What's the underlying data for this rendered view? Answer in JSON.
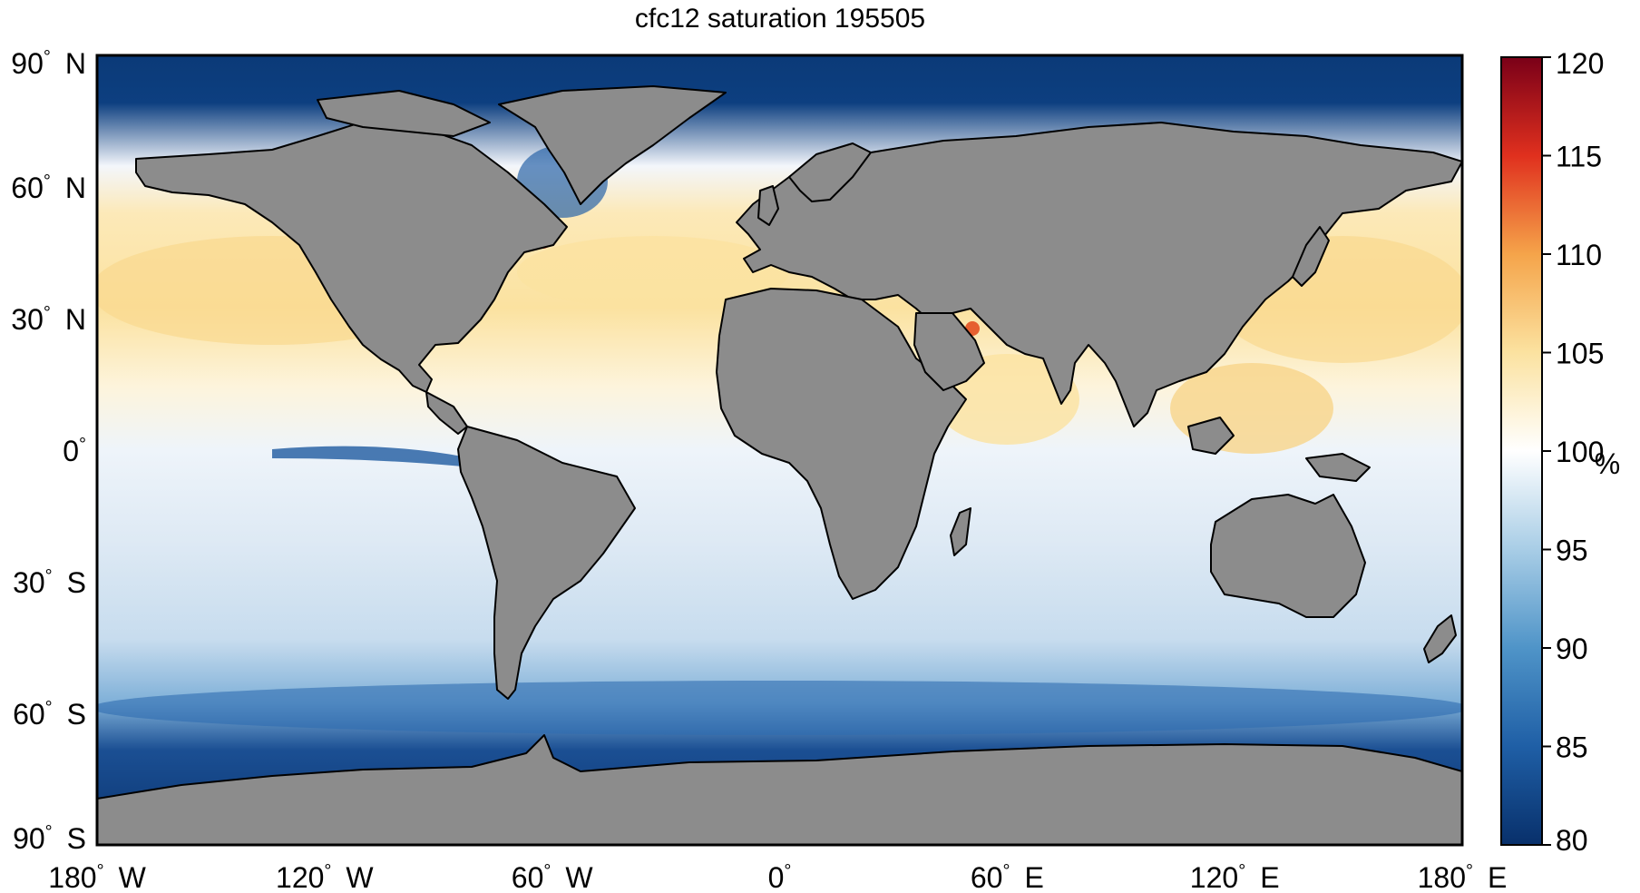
{
  "title": "cfc12 saturation 195505",
  "map": {
    "projection": "equirectangular",
    "lon_range": [
      -180,
      180
    ],
    "lat_range": [
      -90,
      90
    ],
    "land_color": "#8c8c8c",
    "coastline_color": "#000000"
  },
  "y_ticks": [
    {
      "lat": 90,
      "deg": "90",
      "hemi": "N"
    },
    {
      "lat": 60,
      "deg": "60",
      "hemi": "N"
    },
    {
      "lat": 30,
      "deg": "30",
      "hemi": "N"
    },
    {
      "lat": 0,
      "deg": "0",
      "hemi": ""
    },
    {
      "lat": -30,
      "deg": "30",
      "hemi": "S"
    },
    {
      "lat": -60,
      "deg": "60",
      "hemi": "S"
    },
    {
      "lat": -90,
      "deg": "90",
      "hemi": "S"
    }
  ],
  "x_ticks": [
    {
      "lon": -180,
      "deg": "180",
      "hemi": "W"
    },
    {
      "lon": -120,
      "deg": "120",
      "hemi": "W"
    },
    {
      "lon": -60,
      "deg": "60",
      "hemi": "W"
    },
    {
      "lon": 0,
      "deg": "0",
      "hemi": ""
    },
    {
      "lon": 60,
      "deg": "60",
      "hemi": "E"
    },
    {
      "lon": 120,
      "deg": "120",
      "hemi": "E"
    },
    {
      "lon": 180,
      "deg": "180",
      "hemi": "E"
    }
  ],
  "colorbar": {
    "min": 80,
    "max": 120,
    "unit": "%",
    "ticks": [
      "80",
      "85",
      "90",
      "95",
      "100",
      "105",
      "110",
      "115",
      "120"
    ],
    "colors": [
      "#08306b",
      "#1f5fa6",
      "#4f94c8",
      "#a8cde6",
      "#ffffff",
      "#fbe2a0",
      "#f5a44a",
      "#e0301e",
      "#7a0018"
    ]
  }
}
